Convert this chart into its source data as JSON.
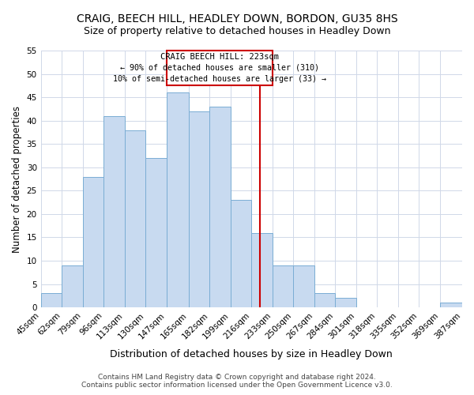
{
  "title": "CRAIG, BEECH HILL, HEADLEY DOWN, BORDON, GU35 8HS",
  "subtitle": "Size of property relative to detached houses in Headley Down",
  "xlabel": "Distribution of detached houses by size in Headley Down",
  "ylabel": "Number of detached properties",
  "bar_edges": [
    45,
    62,
    79,
    96,
    113,
    130,
    147,
    165,
    182,
    199,
    216,
    233,
    250,
    267,
    284,
    301,
    318,
    335,
    352,
    369,
    387
  ],
  "bar_heights": [
    3,
    9,
    28,
    41,
    38,
    32,
    46,
    42,
    43,
    23,
    16,
    9,
    9,
    3,
    2,
    0,
    0,
    0,
    0,
    1
  ],
  "bar_color": "#c8daf0",
  "bar_edge_color": "#7aadd4",
  "property_line_x": 223,
  "property_line_color": "#cc0000",
  "annotation_text_line1": "CRAIG BEECH HILL: 223sqm",
  "annotation_text_line2": "← 90% of detached houses are smaller (310)",
  "annotation_text_line3": "10% of semi-detached houses are larger (33) →",
  "annotation_box_color": "#cc0000",
  "ylim": [
    0,
    55
  ],
  "yticks": [
    0,
    5,
    10,
    15,
    20,
    25,
    30,
    35,
    40,
    45,
    50,
    55
  ],
  "tick_labels": [
    "45sqm",
    "62sqm",
    "79sqm",
    "96sqm",
    "113sqm",
    "130sqm",
    "147sqm",
    "165sqm",
    "182sqm",
    "199sqm",
    "216sqm",
    "233sqm",
    "250sqm",
    "267sqm",
    "284sqm",
    "301sqm",
    "318sqm",
    "335sqm",
    "352sqm",
    "369sqm",
    "387sqm"
  ],
  "footer_line1": "Contains HM Land Registry data © Crown copyright and database right 2024.",
  "footer_line2": "Contains public sector information licensed under the Open Government Licence v3.0.",
  "background_color": "#ffffff",
  "grid_color": "#d0d8e8",
  "title_fontsize": 10,
  "subtitle_fontsize": 9,
  "xlabel_fontsize": 9,
  "ylabel_fontsize": 8.5,
  "footer_fontsize": 6.5,
  "tick_fontsize": 7.5
}
